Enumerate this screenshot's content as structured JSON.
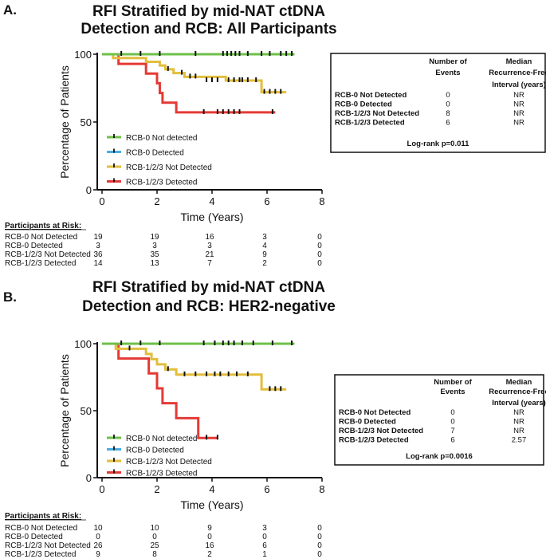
{
  "chart_data": [
    {
      "type": "line",
      "panel": "A.",
      "title_lines": [
        "RFI Stratified by mid-NAT ctDNA",
        "Detection and RCB: All Participants"
      ],
      "xlabel": "Time (Years)",
      "ylabel": "Percentage of Patients",
      "xlim": [
        0,
        8
      ],
      "ylim": [
        0,
        100
      ],
      "xticks": [
        "0",
        "2",
        "4",
        "6",
        "8"
      ],
      "yticks": [
        "0",
        "50",
        "100"
      ],
      "series": [
        {
          "name": "RCB-0 Not detected",
          "color": "#6fc04a",
          "steps": [
            [
              0,
              100
            ],
            [
              7.0,
              100
            ]
          ],
          "censors": [
            [
              0.7,
              100
            ],
            [
              1.4,
              100
            ],
            [
              2.1,
              100
            ],
            [
              3.4,
              100
            ],
            [
              4.4,
              100
            ],
            [
              4.55,
              100
            ],
            [
              4.7,
              100
            ],
            [
              4.85,
              100
            ],
            [
              5.0,
              100
            ],
            [
              5.3,
              100
            ],
            [
              5.8,
              100
            ],
            [
              6.5,
              100
            ],
            [
              6.9,
              100
            ]
          ]
        },
        {
          "name": "RCB-0 Detected",
          "color": "#4aaee0",
          "steps": [
            [
              0,
              100
            ],
            [
              7.0,
              100
            ]
          ],
          "censors": [
            [
              6.1,
              100
            ],
            [
              6.7,
              100
            ]
          ]
        },
        {
          "name": "RCB-1/2/3 Not Detected",
          "color": "#e2be3c",
          "steps": [
            [
              0,
              100
            ],
            [
              0.4,
              97.2
            ],
            [
              1.6,
              94.4
            ],
            [
              2.1,
              91.7
            ],
            [
              2.3,
              88.9
            ],
            [
              2.6,
              86.1
            ],
            [
              3.0,
              83.3
            ],
            [
              4.5,
              80.6
            ],
            [
              5.8,
              72.0
            ],
            [
              6.7,
              72.0
            ]
          ],
          "censors": [
            [
              2.4,
              88.9
            ],
            [
              2.9,
              86.1
            ],
            [
              3.2,
              83.3
            ],
            [
              3.4,
              83.3
            ],
            [
              3.8,
              80.6
            ],
            [
              4.0,
              80.6
            ],
            [
              4.2,
              80.6
            ],
            [
              4.6,
              80.6
            ],
            [
              4.8,
              80.6
            ],
            [
              5.0,
              80.6
            ],
            [
              5.1,
              80.6
            ],
            [
              5.3,
              80.6
            ],
            [
              5.6,
              80.6
            ],
            [
              5.9,
              72.0
            ],
            [
              6.1,
              72.0
            ],
            [
              6.3,
              72.0
            ],
            [
              6.5,
              72.0
            ]
          ]
        },
        {
          "name": "RCB-1/2/3 Detected",
          "color": "#e53935",
          "steps": [
            [
              0,
              100
            ],
            [
              0.6,
              92.9
            ],
            [
              1.6,
              85.7
            ],
            [
              2.0,
              78.6
            ],
            [
              2.1,
              71.4
            ],
            [
              2.2,
              64.3
            ],
            [
              2.7,
              57.1
            ],
            [
              6.3,
              57.1
            ]
          ],
          "censors": [
            [
              3.7,
              57.1
            ],
            [
              4.2,
              57.1
            ],
            [
              4.4,
              57.1
            ],
            [
              4.6,
              57.1
            ],
            [
              4.8,
              57.1
            ],
            [
              5.0,
              57.1
            ],
            [
              6.2,
              57.1
            ]
          ]
        }
      ],
      "legend": [
        "RCB-0 Not detected",
        "RCB-0 Detected",
        "RCB-1/2/3 Not Detected",
        "RCB-1/2/3 Detected"
      ],
      "risk_header": "Participants at Risk:",
      "risk_rows": [
        {
          "label": "RCB-0 Not Detected",
          "values": [
            "19",
            "19",
            "16",
            "3",
            "0"
          ]
        },
        {
          "label": "RCB-0 Detected",
          "values": [
            "3",
            "3",
            "3",
            "4",
            "0"
          ]
        },
        {
          "label": "RCB-1/2/3 Not Detected",
          "values": [
            "36",
            "35",
            "21",
            "9",
            "0"
          ]
        },
        {
          "label": "RCB-1/2/3 Detected",
          "values": [
            "14",
            "13",
            "7",
            "2",
            "0"
          ]
        }
      ],
      "table": {
        "col1_header": [
          "Number of",
          "Events"
        ],
        "col2_header": [
          "Median",
          "Recurrence-Free",
          "Interval (years)"
        ],
        "rows": [
          {
            "label": "RCB-0 Not Detected",
            "events": "0",
            "median": "NR"
          },
          {
            "label": "RCB-0 Detected",
            "events": "0",
            "median": "NR"
          },
          {
            "label": "RCB-1/2/3 Not Detected",
            "events": "8",
            "median": "NR"
          },
          {
            "label": "RCB-1/2/3 Detected",
            "events": "6",
            "median": "NR"
          }
        ],
        "logrank": "Log-rank p=0.011"
      }
    },
    {
      "type": "line",
      "panel": "B.",
      "title_lines": [
        "RFI Stratified by mid-NAT ctDNA",
        "Detection and RCB: HER2-negative"
      ],
      "xlabel": "Time (Years)",
      "ylabel": "Percentage of Patients",
      "xlim": [
        0,
        8
      ],
      "ylim": [
        0,
        100
      ],
      "xticks": [
        "0",
        "2",
        "4",
        "6",
        "8"
      ],
      "yticks": [
        "0",
        "50",
        "100"
      ],
      "series": [
        {
          "name": "RCB-0 Not detected",
          "color": "#6fc04a",
          "steps": [
            [
              0,
              100
            ],
            [
              7.0,
              100
            ]
          ],
          "censors": [
            [
              0.7,
              100
            ],
            [
              1.4,
              100
            ],
            [
              2.1,
              100
            ],
            [
              3.7,
              100
            ],
            [
              4.1,
              100
            ],
            [
              4.4,
              100
            ],
            [
              4.6,
              100
            ],
            [
              4.8,
              100
            ],
            [
              5.1,
              100
            ],
            [
              5.5,
              100
            ],
            [
              6.2,
              100
            ],
            [
              6.9,
              100
            ]
          ]
        },
        {
          "name": "RCB-0 Detected",
          "color": "#4aaee0",
          "steps": [
            [
              0,
              100
            ],
            [
              7.0,
              100
            ]
          ],
          "censors": []
        },
        {
          "name": "RCB-1/2/3 Not Detected",
          "color": "#e2be3c",
          "steps": [
            [
              0,
              100
            ],
            [
              0.5,
              96.2
            ],
            [
              1.6,
              92.3
            ],
            [
              1.8,
              88.5
            ],
            [
              2.0,
              84.6
            ],
            [
              2.3,
              80.8
            ],
            [
              2.7,
              76.9
            ],
            [
              5.8,
              65.9
            ],
            [
              6.7,
              65.9
            ]
          ],
          "censors": [
            [
              1.0,
              96.2
            ],
            [
              2.4,
              80.8
            ],
            [
              3.0,
              76.9
            ],
            [
              3.4,
              76.9
            ],
            [
              3.8,
              76.9
            ],
            [
              4.1,
              76.9
            ],
            [
              4.3,
              76.9
            ],
            [
              4.6,
              76.9
            ],
            [
              4.9,
              76.9
            ],
            [
              5.3,
              76.9
            ],
            [
              6.1,
              65.9
            ],
            [
              6.3,
              65.9
            ],
            [
              6.5,
              65.9
            ]
          ]
        },
        {
          "name": "RCB-1/2/3 Detected",
          "color": "#e53935",
          "steps": [
            [
              0,
              100
            ],
            [
              0.6,
              88.9
            ],
            [
              1.7,
              77.8
            ],
            [
              2.0,
              66.7
            ],
            [
              2.2,
              55.6
            ],
            [
              2.7,
              44.4
            ],
            [
              3.5,
              29.6
            ],
            [
              4.2,
              29.6
            ]
          ],
          "censors": [
            [
              3.8,
              29.6
            ],
            [
              4.2,
              29.6
            ]
          ]
        }
      ],
      "legend": [
        "RCB-0 Not detected",
        "RCB-0 Detected",
        "RCB-1/2/3 Not Detected",
        "RCB-1/2/3 Detected"
      ],
      "risk_header": "Participants at Risk:",
      "risk_rows": [
        {
          "label": "RCB-0 Not Detected",
          "values": [
            "10",
            "10",
            "9",
            "3",
            "0"
          ]
        },
        {
          "label": "RCB-0 Detected",
          "values": [
            "0",
            "0",
            "0",
            "0",
            "0"
          ]
        },
        {
          "label": "RCB-1/2/3 Not Detected",
          "values": [
            "26",
            "25",
            "16",
            "6",
            "0"
          ]
        },
        {
          "label": "RCB-1/2/3 Detected",
          "values": [
            "9",
            "8",
            "2",
            "1",
            "0"
          ]
        }
      ],
      "table": {
        "col1_header": [
          "Number of",
          "Events"
        ],
        "col2_header": [
          "Median",
          "Recurrence-Free",
          "Interval (years)"
        ],
        "rows": [
          {
            "label": "RCB-0 Not Detected",
            "events": "0",
            "median": "NR"
          },
          {
            "label": "RCB-0 Detected",
            "events": "0",
            "median": "NR"
          },
          {
            "label": "RCB-1/2/3 Not Detected",
            "events": "7",
            "median": "NR"
          },
          {
            "label": "RCB-1/2/3 Detected",
            "events": "6",
            "median": "2.57"
          }
        ],
        "logrank": "Log-rank p=0.0016"
      }
    }
  ]
}
